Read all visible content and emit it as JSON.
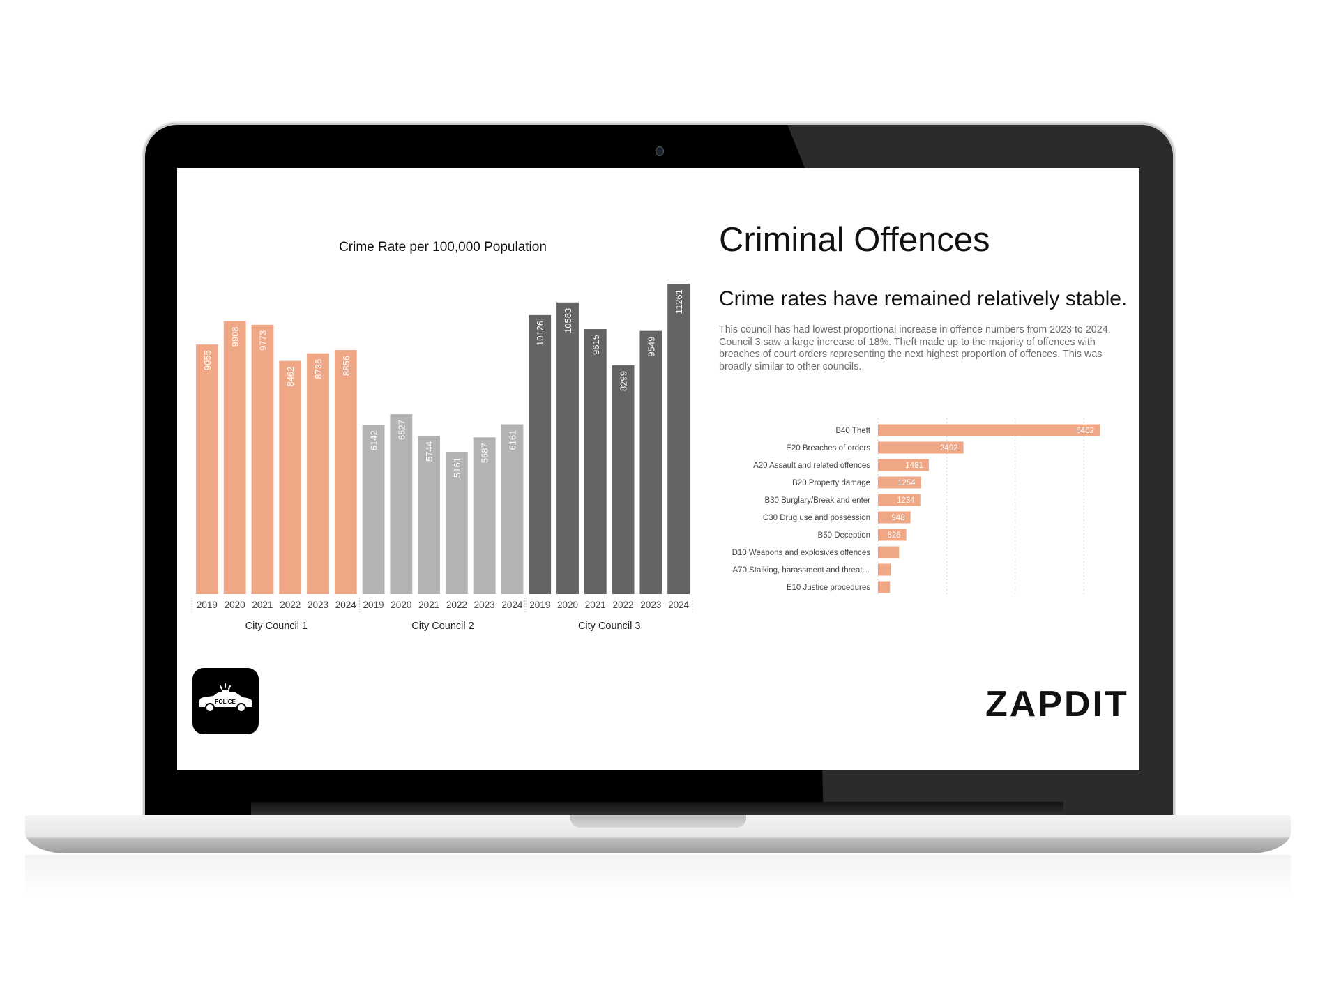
{
  "slide": {
    "title": "Criminal Offences",
    "subtitle": "Crime rates have remained relatively stable.",
    "paragraph": "This council has had lowest proportional increase in offence numbers from 2023 to 2024. Council 3 saw a large increase of 18%. Theft made up to the majority of offences with breaches of court orders representing the next highest proportion of offences. This was broadly similar to other councils.",
    "police_icon_text": "POLICE",
    "logo_text": "ZAPDIT"
  },
  "chart_data": [
    {
      "type": "bar",
      "title": "Crime Rate per 100,000 Population",
      "grid": false,
      "groups": [
        "City Council 1",
        "City Council 2",
        "City Council 3"
      ],
      "categories": [
        "2019",
        "2020",
        "2021",
        "2022",
        "2023",
        "2024"
      ],
      "series": [
        {
          "group": "City Council 1",
          "color": "#efa785",
          "values": [
            9055,
            9908,
            9773,
            8462,
            8736,
            8856
          ]
        },
        {
          "group": "City Council 2",
          "color": "#b3b3b3",
          "values": [
            6142,
            6527,
            5744,
            5161,
            5687,
            6161
          ]
        },
        {
          "group": "City Council 3",
          "color": "#646464",
          "values": [
            10126,
            10583,
            9615,
            8299,
            9549,
            11261
          ]
        }
      ],
      "ylim": [
        0,
        11261
      ]
    },
    {
      "type": "bar",
      "orientation": "horizontal",
      "color": "#efa785",
      "grid": true,
      "xlim": [
        0,
        6462
      ],
      "gridlines": [
        0,
        2000,
        4000,
        6000
      ],
      "categories": [
        "B40 Theft",
        "E20 Breaches of orders",
        "A20 Assault and related offences",
        "B20 Property damage",
        "B30 Burglary/Break and enter",
        "C30 Drug use and possession",
        "B50 Deception",
        "D10 Weapons and explosives offences",
        "A70 Stalking, harassment and threat…",
        "E10 Justice procedures"
      ],
      "values": [
        6462,
        2492,
        1481,
        1254,
        1234,
        948,
        826,
        615,
        366,
        350
      ],
      "labels": [
        "6462",
        "2492",
        "1481",
        "1254",
        "1234",
        "948",
        "826",
        "",
        "",
        ""
      ]
    }
  ]
}
